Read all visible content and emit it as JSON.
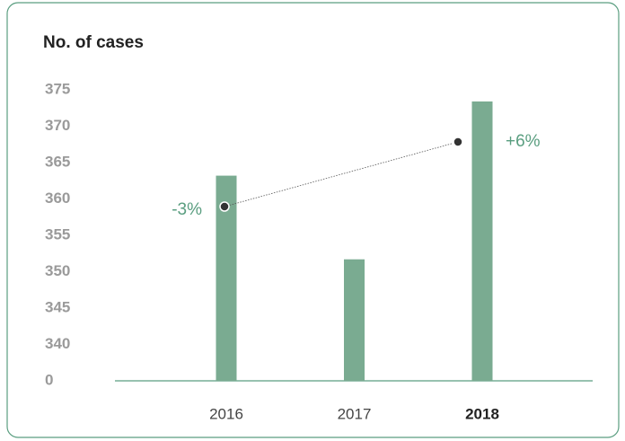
{
  "chart_data": {
    "type": "bar",
    "title": "No. of cases",
    "categories": [
      "2016",
      "2017",
      "2018"
    ],
    "values": [
      363.2,
      351.7,
      373.4
    ],
    "color": "#7aab91",
    "ylim": [
      0,
      375
    ],
    "axis_break": [
      0,
      335
    ],
    "yticks": [
      0,
      340,
      345,
      350,
      355,
      360,
      365,
      370,
      375
    ],
    "annotations": [
      "-3%",
      "+6%"
    ]
  }
}
